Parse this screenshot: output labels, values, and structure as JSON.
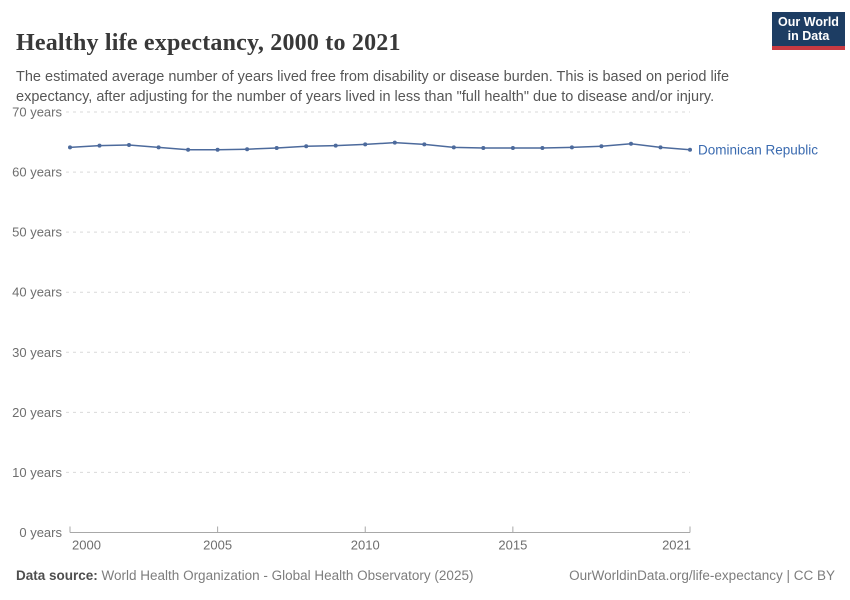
{
  "header": {
    "title": "Healthy life expectancy, 2000 to 2021",
    "subtitle": "The estimated average number of years lived free from disability or disease burden. This is based on period life expectancy, after adjusting for the number of years lived in less than \"full health\" due to disease and/or injury.",
    "logo": {
      "line1": "Our World",
      "line2": "in Data",
      "bg_color": "#1d3d63",
      "accent_color": "#c83a42"
    }
  },
  "chart_data": {
    "type": "line",
    "title": "Healthy life expectancy, 2000 to 2021",
    "x": [
      2000,
      2001,
      2002,
      2003,
      2004,
      2005,
      2006,
      2007,
      2008,
      2009,
      2010,
      2011,
      2012,
      2013,
      2014,
      2015,
      2016,
      2017,
      2018,
      2019,
      2020,
      2021
    ],
    "series": [
      {
        "name": "Dominican Republic",
        "color": "#4c6a9c",
        "label_color": "#3b6bb0",
        "values": [
          64.1,
          64.4,
          64.5,
          64.1,
          63.7,
          63.7,
          63.8,
          64.0,
          64.3,
          64.4,
          64.6,
          64.9,
          64.6,
          64.1,
          64.0,
          64.0,
          64.0,
          64.1,
          64.3,
          64.7,
          64.1,
          63.7
        ]
      }
    ],
    "xlabel": "",
    "ylabel": "years",
    "ylim": [
      0,
      70
    ],
    "yticks": [
      0,
      10,
      20,
      30,
      40,
      50,
      60,
      70
    ],
    "ytick_suffix": " years",
    "xticks": [
      2000,
      2005,
      2010,
      2015,
      2021
    ],
    "grid": "horizontal-dashed",
    "legend_position": "end-of-line-label",
    "colors": {
      "grid_line": "#d9d9d9",
      "axis_line": "#a8a8a8",
      "tick_label": "#6e6e6e"
    }
  },
  "footer": {
    "source_label": "Data source:",
    "source_value": " World Health Organization - Global Health Observatory (2025)",
    "credit": "OurWorldinData.org/life-expectancy | CC BY"
  }
}
